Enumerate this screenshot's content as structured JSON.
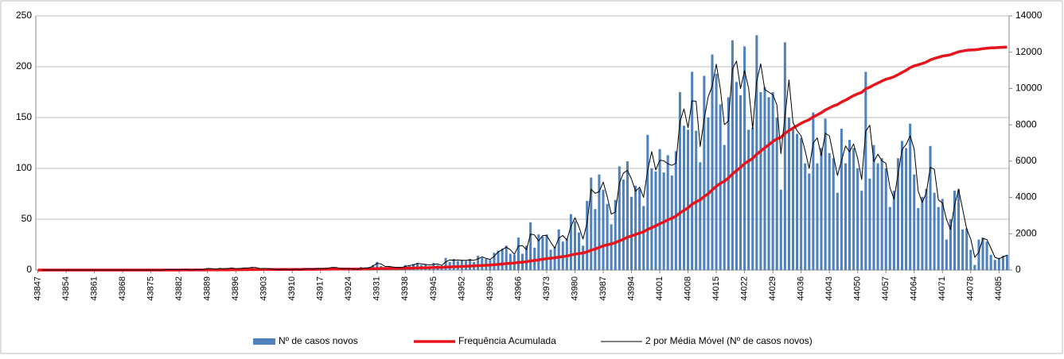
{
  "chart_data": {
    "type": "bar",
    "x": [
      43847,
      43848,
      43849,
      43850,
      43851,
      43852,
      43853,
      43854,
      43855,
      43856,
      43857,
      43858,
      43859,
      43860,
      43861,
      43862,
      43863,
      43864,
      43865,
      43866,
      43867,
      43868,
      43869,
      43870,
      43871,
      43872,
      43873,
      43874,
      43875,
      43876,
      43877,
      43878,
      43879,
      43880,
      43881,
      43882,
      43883,
      43884,
      43885,
      43886,
      43887,
      43888,
      43889,
      43890,
      43891,
      43892,
      43893,
      43894,
      43895,
      43896,
      43897,
      43898,
      43899,
      43900,
      43901,
      43902,
      43903,
      43904,
      43905,
      43906,
      43907,
      43908,
      43909,
      43910,
      43911,
      43912,
      43913,
      43914,
      43915,
      43916,
      43917,
      43918,
      43919,
      43920,
      43921,
      43922,
      43923,
      43924,
      43925,
      43926,
      43927,
      43928,
      43929,
      43930,
      43931,
      43932,
      43933,
      43934,
      43935,
      43936,
      43937,
      43938,
      43939,
      43940,
      43941,
      43942,
      43943,
      43944,
      43945,
      43946,
      43947,
      43948,
      43949,
      43950,
      43951,
      43952,
      43953,
      43954,
      43955,
      43956,
      43957,
      43958,
      43959,
      43960,
      43961,
      43962,
      43963,
      43964,
      43965,
      43966,
      43967,
      43968,
      43969,
      43970,
      43971,
      43972,
      43973,
      43974,
      43975,
      43976,
      43977,
      43978,
      43979,
      43980,
      43981,
      43982,
      43983,
      43984,
      43985,
      43986,
      43987,
      43988,
      43989,
      43990,
      43991,
      43992,
      43993,
      43994,
      43995,
      43996,
      43997,
      43998,
      43999,
      44000,
      44001,
      44002,
      44003,
      44004,
      44005,
      44006,
      44007,
      44008,
      44009,
      44010,
      44011,
      44012,
      44013,
      44014,
      44015,
      44016,
      44017,
      44018,
      44019,
      44020,
      44021,
      44022,
      44023,
      44024,
      44025,
      44026,
      44027,
      44028,
      44029,
      44030,
      44031,
      44032,
      44033,
      44034,
      44035,
      44036,
      44037,
      44038,
      44039,
      44040,
      44041,
      44042,
      44043,
      44044,
      44045,
      44046,
      44047,
      44048,
      44049,
      44050,
      44051,
      44052,
      44053,
      44054,
      44055,
      44056,
      44057,
      44058,
      44059,
      44060,
      44061,
      44062,
      44063,
      44064,
      44065,
      44066,
      44067,
      44068,
      44069,
      44070,
      44071,
      44072,
      44073,
      44074,
      44075,
      44076,
      44077,
      44078,
      44079,
      44080,
      44081,
      44082,
      44083,
      44084,
      44085,
      44086,
      44087
    ],
    "series": [
      {
        "name": "Nº de casos novos",
        "type": "bar",
        "color": "#4f81bd",
        "values": [
          0,
          0,
          0,
          0,
          0,
          0,
          0,
          0,
          0,
          0,
          0,
          0,
          0,
          0,
          0,
          0,
          0,
          0,
          0,
          0,
          0,
          0,
          0,
          0,
          0,
          0,
          0,
          0,
          0,
          0,
          0,
          0,
          1,
          0,
          1,
          0,
          1,
          0,
          0,
          1,
          0,
          1,
          2,
          1,
          1,
          2,
          1,
          2,
          2,
          1,
          2,
          2,
          2,
          3,
          2,
          1,
          2,
          1,
          1,
          0,
          1,
          1,
          0,
          1,
          1,
          0,
          2,
          1,
          1,
          2,
          1,
          2,
          2,
          3,
          2,
          1,
          2,
          1,
          1,
          0,
          3,
          1,
          3,
          5,
          8,
          4,
          3,
          4,
          2,
          3,
          2,
          5,
          4,
          6,
          7,
          5,
          6,
          4,
          7,
          5,
          4,
          12,
          8,
          11,
          9,
          10,
          9,
          11,
          8,
          14,
          12,
          11,
          10,
          17,
          19,
          21,
          24,
          16,
          15,
          32,
          16,
          24,
          47,
          22,
          35,
          33,
          35,
          20,
          23,
          40,
          28,
          31,
          55,
          48,
          37,
          24,
          68,
          91,
          60,
          94,
          79,
          65,
          45,
          69,
          102,
          89,
          107,
          72,
          83,
          80,
          63,
          133,
          100,
          97,
          119,
          96,
          113,
          93,
          117,
          175,
          142,
          138,
          195,
          137,
          106,
          191,
          150,
          212,
          193,
          163,
          123,
          170,
          226,
          185,
          172,
          220,
          138,
          140,
          231,
          175,
          180,
          170,
          175,
          150,
          79,
          224,
          150,
          140,
          134,
          130,
          105,
          95,
          155,
          105,
          120,
          149,
          115,
          110,
          76,
          139,
          105,
          128,
          120,
          100,
          78,
          195,
          90,
          123,
          105,
          110,
          100,
          62,
          78,
          110,
          127,
          120,
          144,
          94,
          61,
          72,
          80,
          122,
          76,
          62,
          70,
          30,
          50,
          78,
          80,
          40,
          41,
          20,
          5,
          30,
          32,
          28,
          15,
          10,
          12,
          14,
          15
        ]
      },
      {
        "name": "Frequência Acumulada",
        "type": "line",
        "axis": "y2",
        "color": "#e8141c",
        "values": [
          0,
          0,
          0,
          0,
          0,
          0,
          0,
          0,
          0,
          0,
          0,
          0,
          0,
          0,
          0,
          0,
          0,
          0,
          0,
          0,
          0,
          0,
          0,
          0,
          0,
          0,
          0,
          0,
          0,
          0,
          0,
          0,
          1,
          1,
          2,
          2,
          3,
          3,
          3,
          4,
          4,
          5,
          7,
          8,
          9,
          11,
          12,
          14,
          16,
          17,
          19,
          21,
          23,
          26,
          28,
          29,
          31,
          32,
          33,
          33,
          34,
          35,
          35,
          36,
          37,
          37,
          39,
          40,
          41,
          43,
          44,
          46,
          48,
          51,
          53,
          54,
          56,
          57,
          58,
          58,
          61,
          62,
          65,
          70,
          78,
          82,
          85,
          89,
          91,
          94,
          96,
          101,
          105,
          111,
          118,
          123,
          129,
          133,
          140,
          145,
          149,
          161,
          169,
          180,
          189,
          199,
          208,
          219,
          227,
          241,
          253,
          264,
          274,
          291,
          310,
          331,
          355,
          371,
          386,
          418,
          434,
          458,
          505,
          527,
          562,
          595,
          630,
          650,
          673,
          713,
          741,
          772,
          827,
          875,
          912,
          936,
          1004,
          1095,
          1155,
          1249,
          1328,
          1393,
          1438,
          1507,
          1609,
          1698,
          1805,
          1877,
          1960,
          2040,
          2103,
          2236,
          2336,
          2433,
          2552,
          2648,
          2761,
          2854,
          2971,
          3146,
          3288,
          3426,
          3621,
          3758,
          3864,
          4055,
          4205,
          4417,
          4610,
          4773,
          4896,
          5066,
          5292,
          5477,
          5649,
          5869,
          6007,
          6147,
          6378,
          6553,
          6733,
          6903,
          7078,
          7228,
          7307,
          7531,
          7681,
          7821,
          7955,
          8085,
          8190,
          8285,
          8440,
          8545,
          8665,
          8814,
          8929,
          9039,
          9115,
          9254,
          9359,
          9487,
          9607,
          9707,
          9785,
          9980,
          10070,
          10193,
          10298,
          10408,
          10508,
          10570,
          10648,
          10758,
          10885,
          11005,
          11149,
          11243,
          11304,
          11376,
          11456,
          11578,
          11654,
          11716,
          11786,
          11816,
          11866,
          11944,
          12024,
          12064,
          12105,
          12125,
          12130,
          12160,
          12192,
          12220,
          12235,
          12245,
          12257,
          12271,
          12286
        ]
      },
      {
        "name": "2 por Média Móvel (Nº de casos novos)",
        "type": "line",
        "color": "#000000",
        "values": [
          null,
          0,
          0,
          0,
          0,
          0,
          0,
          0,
          0,
          0,
          0,
          0,
          0,
          0,
          0,
          0,
          0,
          0,
          0,
          0,
          0,
          0,
          0,
          0,
          0,
          0,
          0,
          0,
          0,
          0,
          0,
          0,
          0.5,
          0.5,
          0.5,
          0.5,
          0.5,
          0.5,
          0,
          0.5,
          0.5,
          0.5,
          1.5,
          1.5,
          1,
          1.5,
          1.5,
          1.5,
          2,
          1.5,
          1.5,
          2,
          2,
          2.5,
          2.5,
          1.5,
          1.5,
          1.5,
          1,
          0.5,
          0.5,
          1,
          0.5,
          0.5,
          1,
          0.5,
          1,
          1.5,
          1,
          1.5,
          1.5,
          1.5,
          2,
          2.5,
          2.5,
          1.5,
          1.5,
          1.5,
          1,
          0.5,
          1.5,
          2,
          2,
          4,
          6.5,
          6,
          3.5,
          3.5,
          3,
          2.5,
          2.5,
          3.5,
          4.5,
          5,
          6.5,
          6,
          5.5,
          5,
          5.5,
          6,
          4.5,
          8,
          10,
          9.5,
          10,
          9.5,
          9.5,
          10,
          9.5,
          11,
          13,
          11.5,
          10.5,
          13.5,
          18,
          20,
          22.5,
          20,
          15.5,
          23.5,
          24,
          20,
          35.5,
          34.5,
          28.5,
          34,
          34,
          27.5,
          21.5,
          31.5,
          34,
          29.5,
          43,
          51.5,
          42.5,
          30.5,
          46,
          79.5,
          75.5,
          77,
          86.5,
          72,
          55,
          57,
          85.5,
          95.5,
          98,
          89.5,
          77.5,
          81.5,
          71.5,
          98,
          116.5,
          98.5,
          108,
          107.5,
          104.5,
          103,
          105,
          146,
          158.5,
          140,
          166.5,
          166,
          121.5,
          148.5,
          170.5,
          181,
          202.5,
          178,
          143,
          146.5,
          198,
          205.5,
          178.5,
          196,
          179,
          139,
          185.5,
          203,
          177.5,
          175,
          172.5,
          162.5,
          114.5,
          151.5,
          187,
          145,
          137,
          132,
          117.5,
          100,
          125,
          130,
          112.5,
          134.5,
          132,
          112.5,
          93,
          107.5,
          122,
          116.5,
          124,
          110,
          89,
          136.5,
          142.5,
          106.5,
          114,
          107.5,
          105,
          81,
          70,
          94,
          118.5,
          123.5,
          132,
          119,
          77.5,
          66.5,
          76,
          101,
          99,
          69,
          66,
          50,
          40,
          64,
          79,
          60,
          40.5,
          30.5,
          12.5,
          17.5,
          31,
          30,
          21.5,
          12.5,
          11,
          13,
          14.5
        ]
      }
    ],
    "xlim": [
      43847,
      44087
    ],
    "xticks": [
      43847,
      43854,
      43861,
      43868,
      43875,
      43882,
      43889,
      43896,
      43903,
      43910,
      43917,
      43924,
      43931,
      43938,
      43945,
      43952,
      43959,
      43966,
      43973,
      43980,
      43987,
      43994,
      44001,
      44008,
      44015,
      44022,
      44029,
      44036,
      44043,
      44050,
      44057,
      44064,
      44071,
      44078,
      44085
    ],
    "ylim": [
      0,
      250
    ],
    "yticks": [
      0,
      50,
      100,
      150,
      200,
      250
    ],
    "y2lim": [
      0,
      14000
    ],
    "y2ticks": [
      0,
      2000,
      4000,
      6000,
      8000,
      10000,
      12000,
      14000
    ],
    "grid": true,
    "legend": "bottom"
  }
}
